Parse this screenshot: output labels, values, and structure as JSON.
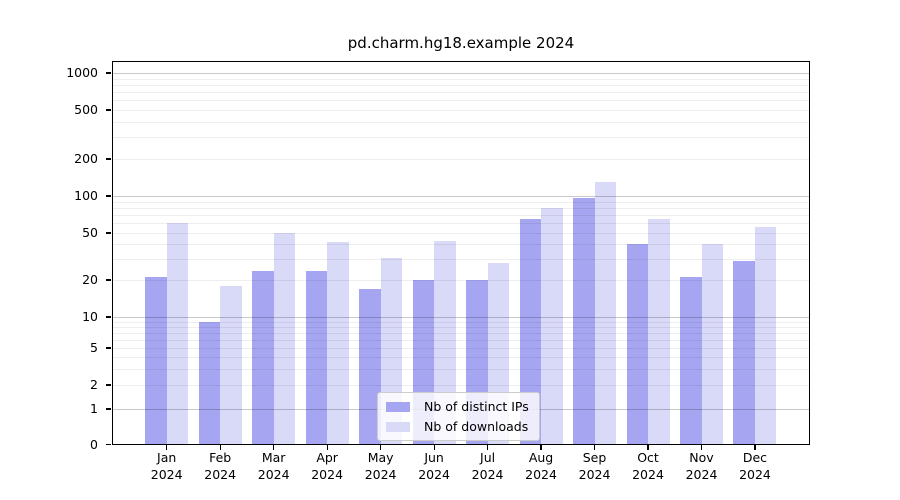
{
  "chart_data": {
    "type": "bar",
    "title": "pd.charm.hg18.example 2024",
    "categories": [
      "Jan 2024",
      "Feb 2024",
      "Mar 2024",
      "Apr 2024",
      "May 2024",
      "Jun 2024",
      "Jul 2024",
      "Aug 2024",
      "Sep 2024",
      "Oct 2024",
      "Nov 2024",
      "Dec 2024"
    ],
    "series": [
      {
        "name": "Nb of distinct IPs",
        "color": "#a5a5f1",
        "values": [
          21,
          9,
          24,
          24,
          17,
          20,
          20,
          65,
          97,
          40,
          21,
          29
        ]
      },
      {
        "name": "Nb of downloads",
        "color": "#d9d9f8",
        "values": [
          60,
          18,
          50,
          42,
          31,
          43,
          28,
          80,
          130,
          65,
          40,
          56
        ]
      }
    ],
    "y_ticks": [
      0,
      1,
      2,
      5,
      10,
      20,
      50,
      100,
      200,
      500,
      1000
    ],
    "y_scale": "log-like (1-2-5 labeled ticks, linear segment below 1)",
    "ylim": [
      0,
      1000
    ],
    "grid": true,
    "legend_position": "lower center",
    "xlabel": "",
    "ylabel": ""
  }
}
